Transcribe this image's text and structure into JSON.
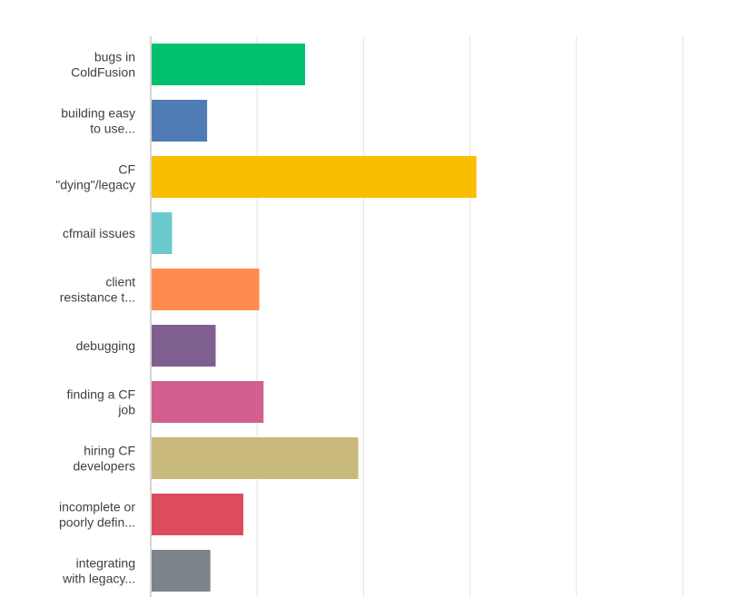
{
  "chart_data": {
    "type": "bar",
    "orientation": "horizontal",
    "categories": [
      [
        "bugs in",
        "ColdFusion"
      ],
      [
        "building easy",
        "to use..."
      ],
      [
        "CF",
        "\"dying\"/legacy"
      ],
      [
        "cfmail issues"
      ],
      [
        "client",
        "resistance t..."
      ],
      [
        "debugging"
      ],
      [
        "finding a CF",
        "job"
      ],
      [
        "hiring CF",
        "developers"
      ],
      [
        "incomplete or",
        "poorly defin..."
      ],
      [
        "integrating",
        "with legacy..."
      ]
    ],
    "values": [
      14.5,
      5.3,
      30.6,
      2.0,
      10.2,
      6.1,
      10.6,
      19.5,
      8.7,
      5.6
    ],
    "xlim": [
      0,
      50
    ],
    "x_gridlines": [
      0,
      10,
      20,
      30,
      40,
      50
    ],
    "grid": true,
    "colors": [
      "#00bf6f",
      "#507cb6",
      "#f9be00",
      "#6bc8cd",
      "#ff8b4f",
      "#7f5f90",
      "#d25f90",
      "#c9b97c",
      "#dd4b5e",
      "#7d838a"
    ],
    "gridline_color": "#e3e3e3",
    "axis_color": "#c8c8c8"
  }
}
